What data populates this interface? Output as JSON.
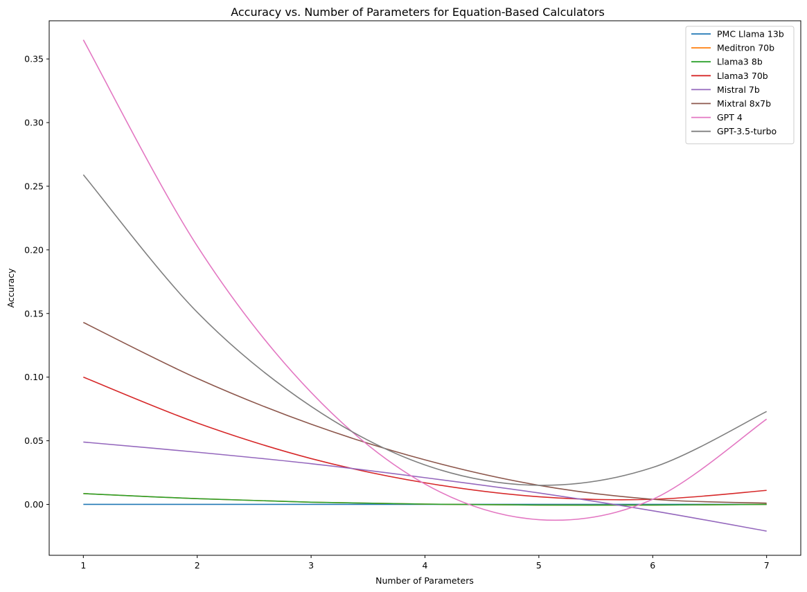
{
  "chart_data": {
    "type": "line",
    "title": "Accuracy vs. Number of Parameters for Equation-Based Calculators",
    "xlabel": "Number of Parameters",
    "ylabel": "Accuracy",
    "xlim": [
      0.7,
      7.3
    ],
    "ylim": [
      -0.04,
      0.38
    ],
    "xticks": [
      1,
      2,
      3,
      4,
      5,
      6,
      7
    ],
    "yticks": [
      0.0,
      0.05,
      0.1,
      0.15,
      0.2,
      0.25,
      0.3,
      0.35
    ],
    "ytick_labels": [
      "0.00",
      "0.05",
      "0.10",
      "0.15",
      "0.20",
      "0.25",
      "0.30",
      "0.35"
    ],
    "grid": false,
    "legend_position": "top-right",
    "x": [
      1,
      2,
      3,
      4,
      5,
      6,
      7
    ],
    "series": [
      {
        "name": "PMC Llama 13b",
        "color": "#1f77b4",
        "values": [
          0.0,
          0.0,
          0.0,
          0.0,
          0.0,
          0.0,
          0.0
        ]
      },
      {
        "name": "Meditron 70b",
        "color": "#ff7f0e",
        "values": [
          0.0085,
          0.0045,
          0.0017,
          0.0002,
          -0.0005,
          -0.0005,
          0.0
        ]
      },
      {
        "name": "Llama3 8b",
        "color": "#2ca02c",
        "values": [
          0.0085,
          0.0045,
          0.0017,
          0.0002,
          -0.0005,
          -0.0005,
          0.0
        ]
      },
      {
        "name": "Llama3 70b",
        "color": "#d62728",
        "values": [
          0.1,
          0.064,
          0.036,
          0.017,
          0.006,
          0.004,
          0.011
        ]
      },
      {
        "name": "Mistral 7b",
        "color": "#9467bd",
        "values": [
          0.049,
          0.041,
          0.032,
          0.021,
          0.009,
          -0.005,
          -0.021
        ]
      },
      {
        "name": "Mixtral 8x7b",
        "color": "#8c564b",
        "values": [
          0.143,
          0.099,
          0.063,
          0.035,
          0.015,
          0.004,
          0.001
        ]
      },
      {
        "name": "GPT 4",
        "color": "#e377c2",
        "values": [
          0.365,
          0.203,
          0.088,
          0.016,
          -0.012,
          0.004,
          0.067
        ]
      },
      {
        "name": "GPT-3.5-turbo",
        "color": "#7f7f7f",
        "values": [
          0.259,
          0.151,
          0.077,
          0.031,
          0.015,
          0.029,
          0.073
        ]
      }
    ]
  }
}
